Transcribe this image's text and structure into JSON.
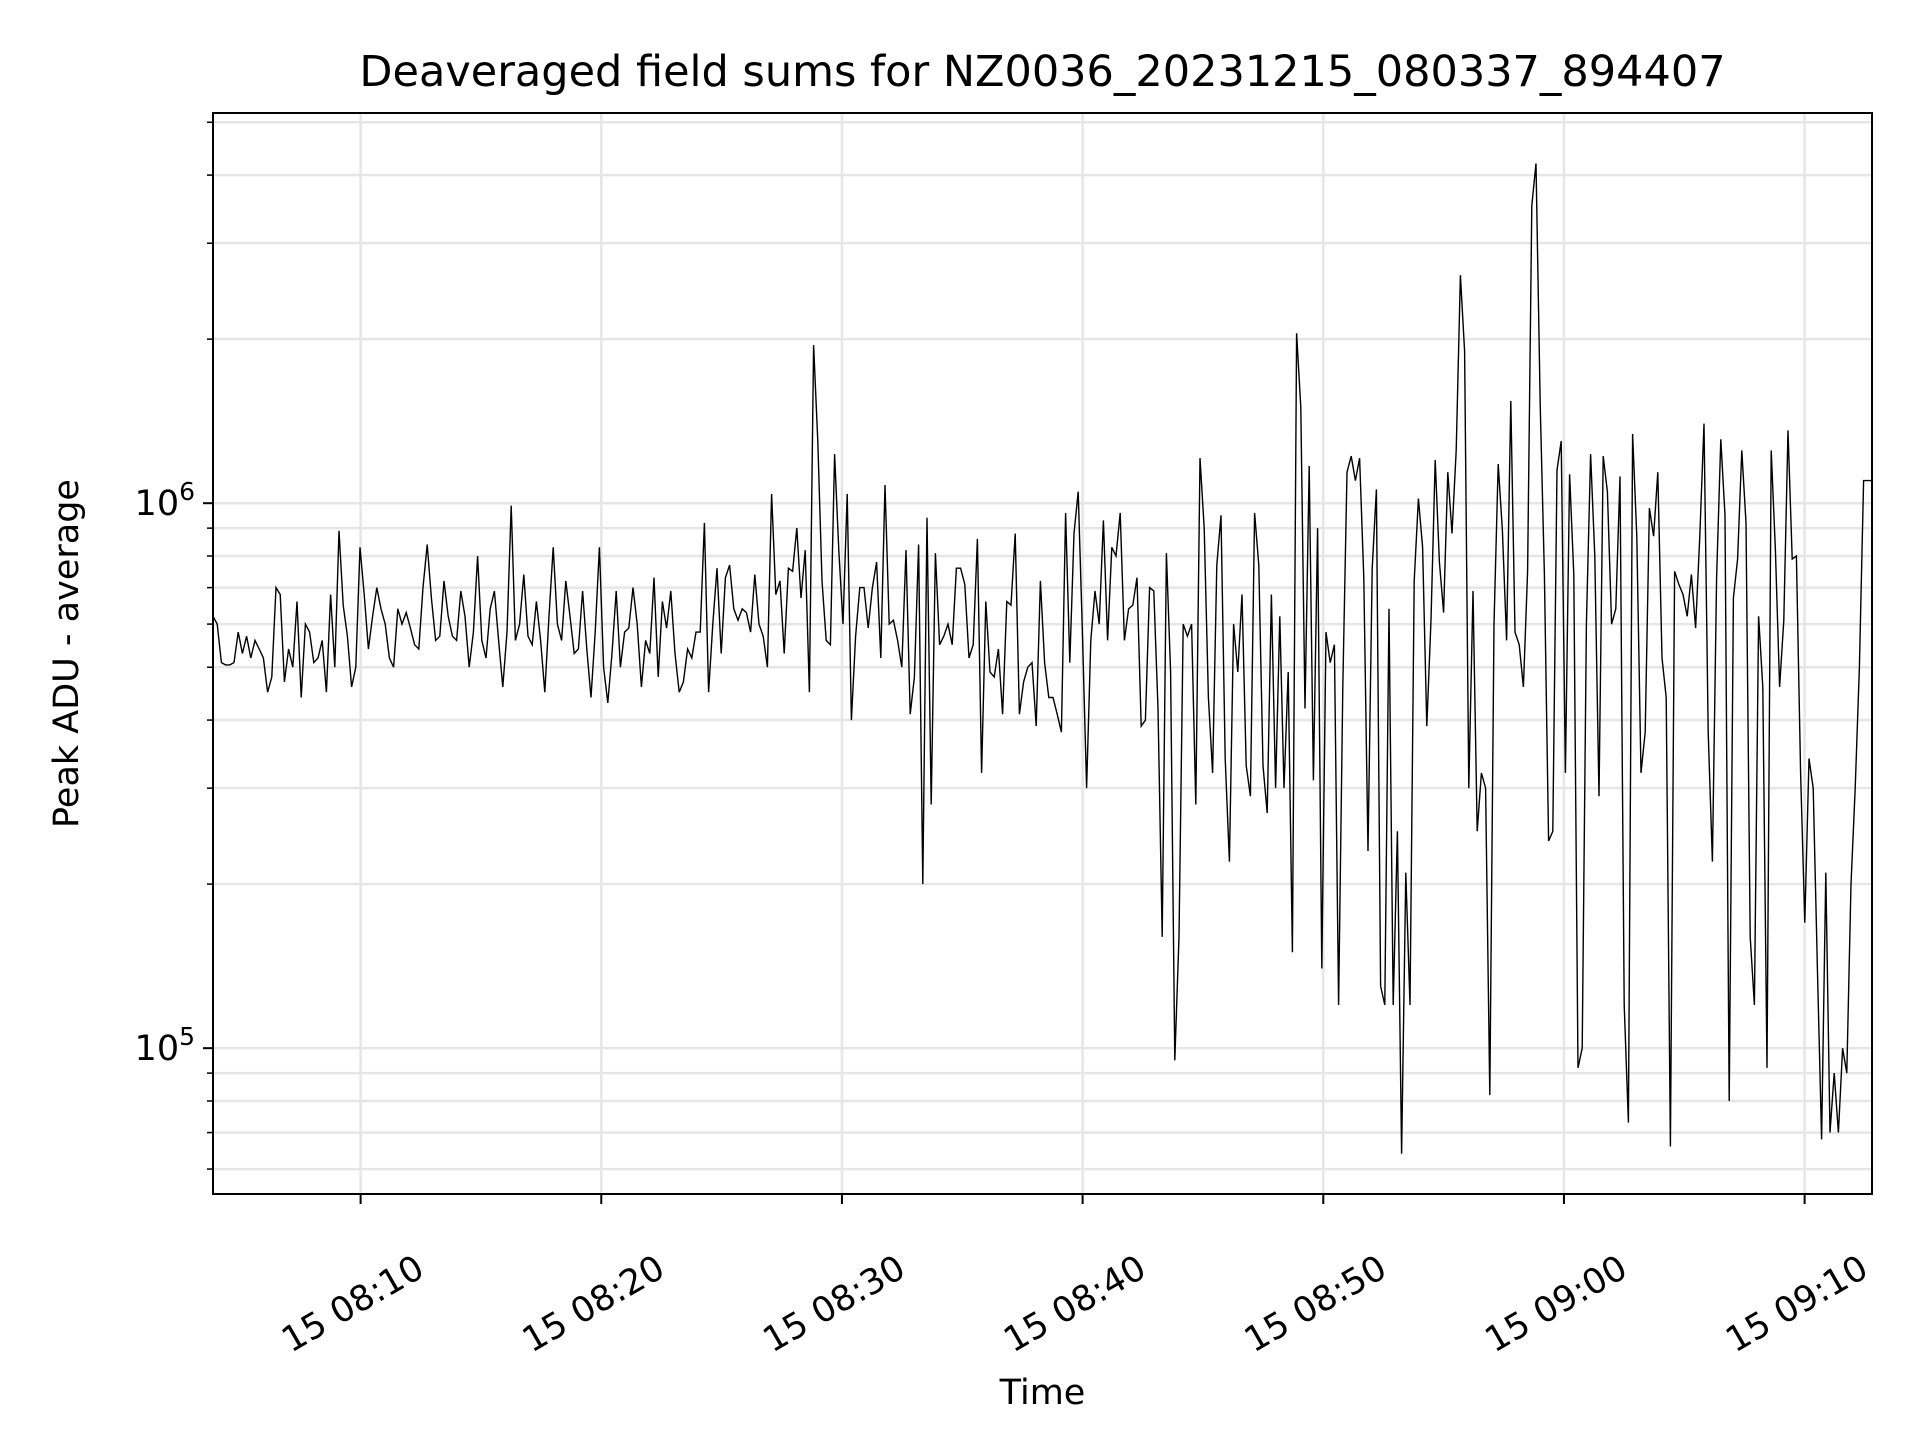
{
  "chart_data": {
    "type": "line",
    "title": "Deaveraged field sums for NZ0036_20231215_080337_894407",
    "xlabel": "Time",
    "ylabel": "Peak ADU - average",
    "y_scale": "log",
    "ylim": [
      54000,
      5200000
    ],
    "xlim": [
      "15 08:03:52",
      "15 09:12:48"
    ],
    "x_tick_labels": [
      "15 08:10",
      "15 08:20",
      "15 08:30",
      "15 08:40",
      "15 08:50",
      "15 09:00",
      "15 09:10"
    ],
    "x_tick_values": [
      "08:10",
      "08:20",
      "08:30",
      "08:40",
      "08:50",
      "09:00",
      "09:10"
    ],
    "y_major_ticks": [
      {
        "value": 100000,
        "mantissa": "10",
        "exponent": "5"
      },
      {
        "value": 1000000,
        "mantissa": "10",
        "exponent": "6"
      }
    ],
    "y_minor_ticks": [
      60000,
      70000,
      80000,
      90000,
      200000,
      300000,
      400000,
      500000,
      600000,
      700000,
      800000,
      900000,
      2000000,
      3000000,
      4000000,
      5000000
    ],
    "grid": true,
    "line_color": "#000000",
    "grid_color": "#e6e6e6",
    "series": [
      {
        "x_start": "08:03:52",
        "x_end": "09:12:48",
        "values": [
          620000,
          600000,
          510000,
          505000,
          505000,
          510000,
          580000,
          530000,
          570000,
          520000,
          560000,
          540000,
          520000,
          450000,
          480000,
          700000,
          680000,
          470000,
          540000,
          500000,
          660000,
          440000,
          600000,
          580000,
          510000,
          520000,
          560000,
          450000,
          680000,
          500000,
          890000,
          650000,
          570000,
          460000,
          500000,
          830000,
          680000,
          540000,
          620000,
          700000,
          640000,
          600000,
          520000,
          500000,
          640000,
          600000,
          630000,
          590000,
          550000,
          540000,
          700000,
          840000,
          670000,
          560000,
          570000,
          720000,
          620000,
          570000,
          560000,
          690000,
          620000,
          500000,
          580000,
          800000,
          560000,
          520000,
          640000,
          690000,
          560000,
          460000,
          580000,
          990000,
          560000,
          600000,
          740000,
          570000,
          550000,
          660000,
          560000,
          450000,
          620000,
          830000,
          600000,
          560000,
          720000,
          620000,
          530000,
          540000,
          690000,
          540000,
          440000,
          580000,
          830000,
          500000,
          430000,
          530000,
          690000,
          500000,
          580000,
          590000,
          700000,
          600000,
          460000,
          560000,
          530000,
          730000,
          480000,
          660000,
          590000,
          690000,
          530000,
          450000,
          470000,
          540000,
          520000,
          580000,
          580000,
          920000,
          450000,
          600000,
          760000,
          530000,
          730000,
          770000,
          640000,
          610000,
          640000,
          630000,
          580000,
          740000,
          600000,
          570000,
          500000,
          1040000,
          680000,
          720000,
          530000,
          760000,
          750000,
          900000,
          670000,
          820000,
          450000,
          1950000,
          1300000,
          720000,
          560000,
          550000,
          1230000,
          820000,
          600000,
          1040000,
          400000,
          570000,
          700000,
          700000,
          590000,
          700000,
          780000,
          520000,
          1080000,
          600000,
          610000,
          560000,
          500000,
          820000,
          410000,
          480000,
          840000,
          200000,
          940000,
          280000,
          810000,
          550000,
          570000,
          600000,
          550000,
          760000,
          760000,
          710000,
          520000,
          550000,
          860000,
          320000,
          660000,
          490000,
          480000,
          540000,
          410000,
          660000,
          650000,
          880000,
          410000,
          470000,
          500000,
          510000,
          390000,
          720000,
          510000,
          440000,
          440000,
          410000,
          380000,
          960000,
          510000,
          880000,
          1050000,
          580000,
          300000,
          560000,
          690000,
          600000,
          930000,
          560000,
          830000,
          800000,
          960000,
          560000,
          640000,
          650000,
          730000,
          390000,
          400000,
          700000,
          690000,
          420000,
          160000,
          810000,
          490000,
          95000,
          160000,
          600000,
          570000,
          600000,
          280000,
          1210000,
          900000,
          440000,
          320000,
          770000,
          950000,
          340000,
          220000,
          600000,
          490000,
          680000,
          330000,
          290000,
          960000,
          770000,
          330000,
          270000,
          680000,
          300000,
          620000,
          300000,
          490000,
          150000,
          2050000,
          1500000,
          420000,
          1170000,
          310000,
          900000,
          140000,
          580000,
          510000,
          550000,
          120000,
          460000,
          1140000,
          1220000,
          1100000,
          1210000,
          730000,
          230000,
          760000,
          1060000,
          130000,
          120000,
          640000,
          120000,
          250000,
          64000,
          210000,
          120000,
          720000,
          1020000,
          830000,
          390000,
          610000,
          1200000,
          780000,
          630000,
          1140000,
          880000,
          1250000,
          2620000,
          1900000,
          300000,
          690000,
          250000,
          320000,
          300000,
          82000,
          600000,
          1180000,
          890000,
          560000,
          1540000,
          580000,
          550000,
          460000,
          750000,
          3520000,
          4200000,
          1520000,
          740000,
          240000,
          250000,
          1150000,
          1300000,
          320000,
          1130000,
          740000,
          92000,
          100000,
          600000,
          1230000,
          800000,
          290000,
          1220000,
          1050000,
          600000,
          640000,
          1120000,
          120000,
          73000,
          1340000,
          870000,
          320000,
          380000,
          980000,
          870000,
          1140000,
          520000,
          440000,
          66000,
          750000,
          710000,
          680000,
          620000,
          740000,
          590000,
          870000,
          1400000,
          380000,
          220000,
          730000,
          1310000,
          950000,
          80000,
          670000,
          790000,
          1250000,
          920000,
          160000,
          120000,
          620000,
          460000,
          92000,
          1250000,
          820000,
          460000,
          610000,
          1360000,
          790000,
          800000,
          320000,
          170000,
          340000,
          300000,
          140000,
          68000,
          210000,
          70000,
          90000,
          70000,
          100000,
          90000,
          200000,
          300000,
          500000,
          1100000,
          1100000,
          1100000
        ]
      }
    ]
  }
}
